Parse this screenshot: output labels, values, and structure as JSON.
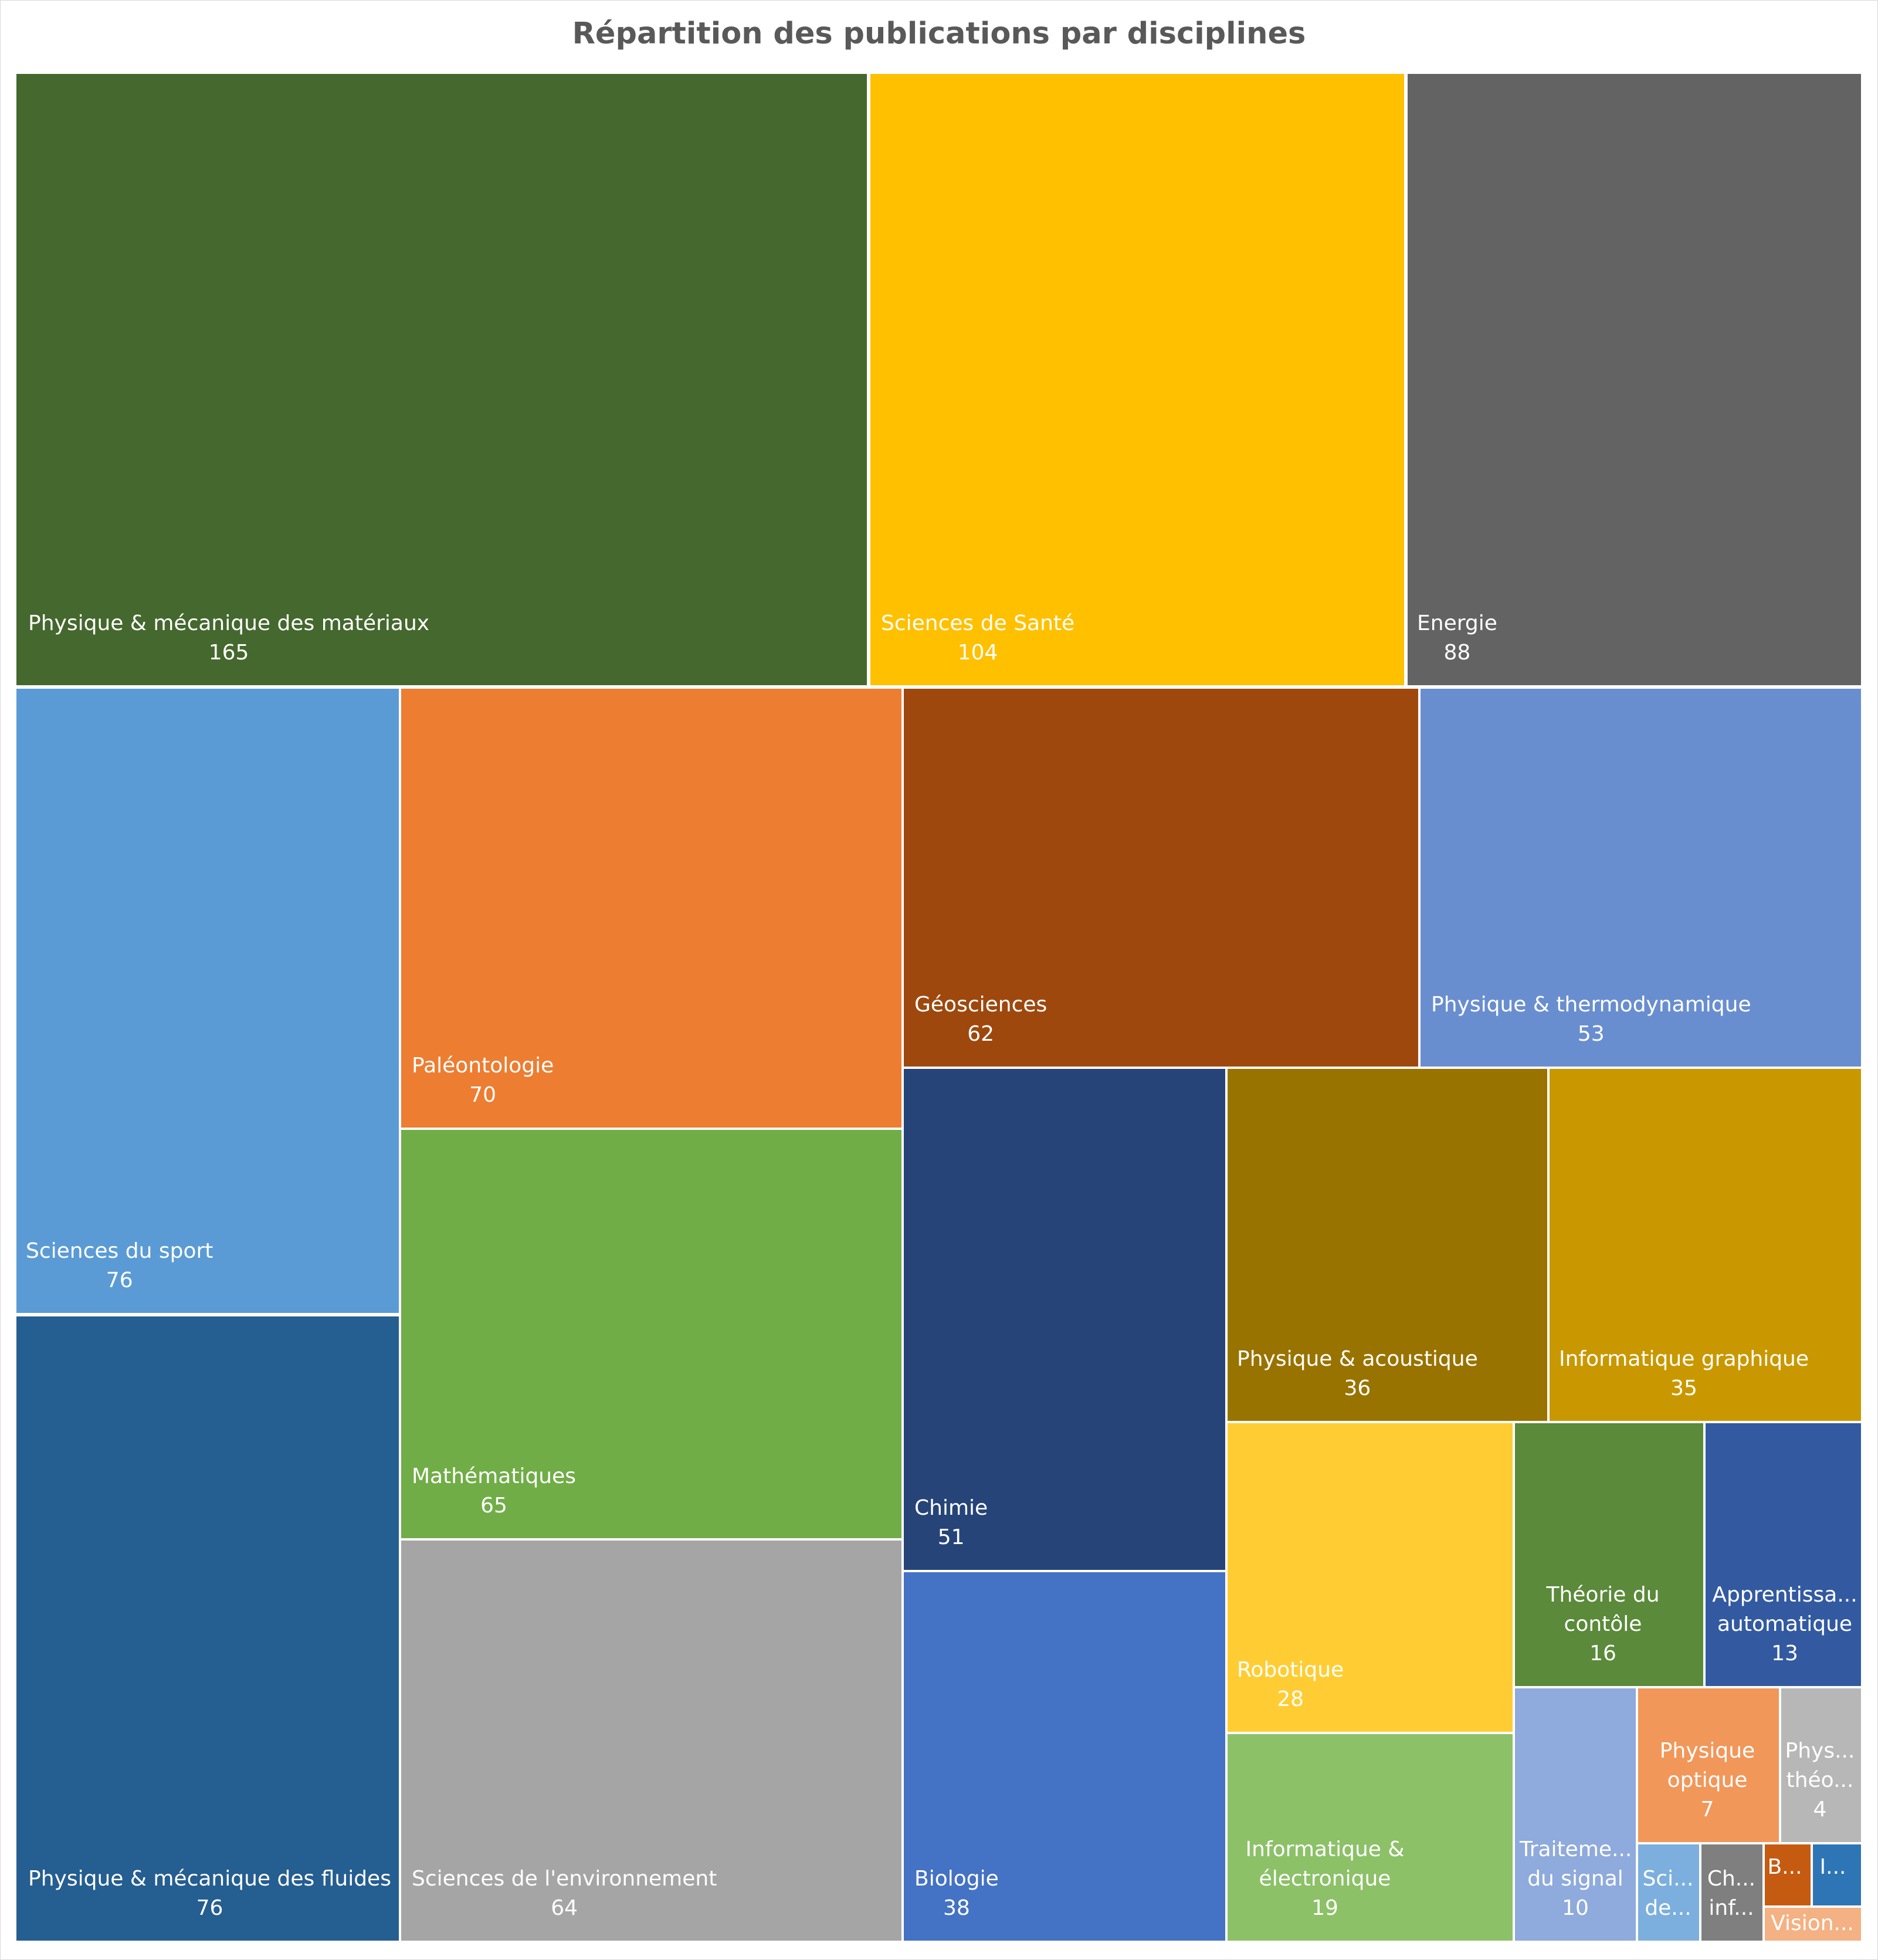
{
  "chart_data": {
    "type": "treemap",
    "title": "Répartition des publications par disciplines",
    "items": [
      {
        "label": "Physique &  mécanique des matériaux",
        "display_label": [
          "Physique &  mécanique des matériaux"
        ],
        "value": 165,
        "color": "#44682D"
      },
      {
        "label": "Sciences de Santé",
        "display_label": [
          "Sciences de Santé"
        ],
        "value": 104,
        "color": "#FFC000"
      },
      {
        "label": "Energie",
        "display_label": [
          "Energie"
        ],
        "value": 88,
        "color": "#636363"
      },
      {
        "label": "Sciences du sport",
        "display_label": [
          "Sciences du sport"
        ],
        "value": 76,
        "color": "#5B9BD5"
      },
      {
        "label": "Physique & mécanique des fluides",
        "display_label": [
          "Physique & mécanique des fluides"
        ],
        "value": 76,
        "color": "#255E91"
      },
      {
        "label": "Paléontologie",
        "display_label": [
          "Paléontologie"
        ],
        "value": 70,
        "color": "#ED7D31"
      },
      {
        "label": "Mathématiques",
        "display_label": [
          "Mathématiques"
        ],
        "value": 65,
        "color": "#70AD47"
      },
      {
        "label": "Sciences de l'environnement",
        "display_label": [
          "Sciences de l'environnement"
        ],
        "value": 64,
        "color": "#A5A5A5"
      },
      {
        "label": "Géosciences",
        "display_label": [
          "Géosciences"
        ],
        "value": 62,
        "color": "#9E480E"
      },
      {
        "label": "Physique & thermodynamique",
        "display_label": [
          "Physique & thermodynamique"
        ],
        "value": 53,
        "color": "#698ED0"
      },
      {
        "label": "Chimie",
        "display_label": [
          "Chimie"
        ],
        "value": 51,
        "color": "#264478"
      },
      {
        "label": "Biologie",
        "display_label": [
          "Biologie"
        ],
        "value": 38,
        "color": "#4472C4"
      },
      {
        "label": "Physique & acoustique",
        "display_label": [
          "Physique & acoustique"
        ],
        "value": 36,
        "color": "#997300"
      },
      {
        "label": "Informatique graphique",
        "display_label": [
          "Informatique graphique"
        ],
        "value": 35,
        "color": "#C99800"
      },
      {
        "label": "Robotique",
        "display_label": [
          "Robotique"
        ],
        "value": 28,
        "color": "#FFCD33"
      },
      {
        "label": "Informatique & électronique",
        "display_label": [
          "Informatique &",
          "électronique"
        ],
        "value": 19,
        "color": "#8CC168"
      },
      {
        "label": "Théorie du contôle",
        "display_label": [
          "Théorie du",
          "contôle"
        ],
        "value": 16,
        "color": "#5A8A3A"
      },
      {
        "label": "Apprentissa... automatique",
        "display_label": [
          "Apprentissa...",
          "automatique"
        ],
        "value": 13,
        "color": "#335AA1"
      },
      {
        "label": "Traiteme... du signal",
        "display_label": [
          "Traiteme...",
          "du signal"
        ],
        "value": 10,
        "color": "#8FAADC"
      },
      {
        "label": "Physique optique",
        "display_label": [
          "Physique",
          "optique"
        ],
        "value": 7,
        "color": "#F1975A"
      },
      {
        "label": "Phys... théo...",
        "display_label": [
          "Phys...",
          "théo..."
        ],
        "value": 4,
        "color": "#B7B7B7"
      },
      {
        "label": "Sci... de...",
        "display_label": [
          "Sci...",
          "de..."
        ],
        "value": null,
        "color": "#7CAFDD"
      },
      {
        "label": "Ch... inf...",
        "display_label": [
          "Ch...",
          "inf..."
        ],
        "value": null,
        "color": "#7F7F7F"
      },
      {
        "label": "B...",
        "display_label": [
          "B..."
        ],
        "value": null,
        "color": "#C55A11"
      },
      {
        "label": "I...",
        "display_label": [
          "I..."
        ],
        "value": null,
        "color": "#2E75B6"
      },
      {
        "label": "Vision...",
        "display_label": [
          "Vision..."
        ],
        "value": null,
        "color": "#F4B183"
      }
    ]
  }
}
